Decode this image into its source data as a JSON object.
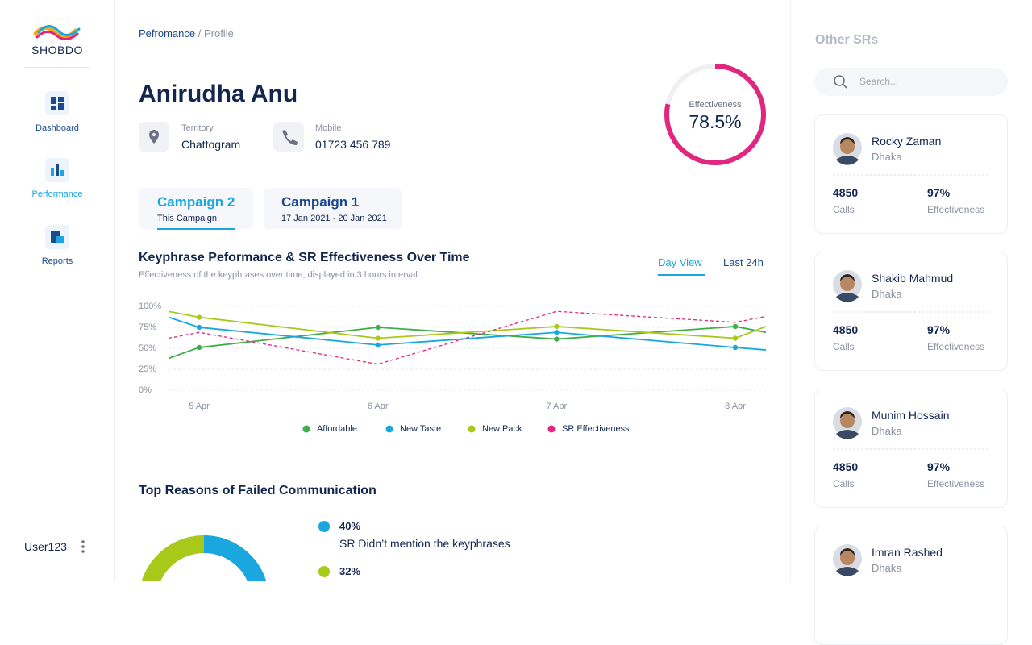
{
  "sidebar": {
    "brand": "SHOBDO",
    "nav": [
      {
        "label": "Dashboard"
      },
      {
        "label": "Performance",
        "active": true
      },
      {
        "label": "Reports"
      }
    ],
    "user": "User123"
  },
  "breadcrumb": {
    "parent": "Pefromance",
    "separator": "/",
    "current": "Profile"
  },
  "profile": {
    "name": "Anirudha Anu",
    "territory_label": "Territory",
    "territory": "Chattogram",
    "mobile_label": "Mobile",
    "mobile": "01723 456 789",
    "effectiveness_title": "Effectiveness",
    "effectiveness": {
      "value": 78.5,
      "label": "78.5%"
    }
  },
  "tabs": [
    {
      "title": "Campaign 2",
      "subtitle": "This Campaign",
      "active": true
    },
    {
      "title": "Campaign 1",
      "subtitle": "17 Jan 2021 - 20 Jan 2021"
    }
  ],
  "view_toggle": [
    {
      "label": "Day View",
      "active": true
    },
    {
      "label": "Last 24h"
    }
  ],
  "chart_data": {
    "type": "line",
    "title": "Keyphrase Peformance & SR Effectiveness Over Time",
    "subtitle": "Effectiveness of the keyphrases over time, displayed in 3 hours interval",
    "categories": [
      null,
      "5 Apr",
      "6 Apr",
      "7 Apr",
      "8 Apr",
      null
    ],
    "series": [
      {
        "name": "Affordable",
        "color": "#3fae49",
        "values": [
          38,
          51,
          75,
          61,
          76,
          69
        ]
      },
      {
        "name": "New Taste",
        "color": "#1aa7e0",
        "values": [
          87,
          75,
          54,
          69,
          51,
          48
        ]
      },
      {
        "name": "New Pack",
        "color": "#a8c81a",
        "values": [
          94,
          87,
          62,
          76,
          62,
          76
        ]
      },
      {
        "name": "SR Effectiveness",
        "color": "#e0267f",
        "style": "dashed",
        "values": [
          62,
          69,
          31,
          94,
          81,
          88
        ]
      }
    ],
    "ylim": [
      0,
      100
    ],
    "yticks": [
      {
        "value": 0,
        "label": "0%"
      },
      {
        "value": 25,
        "label": "25%"
      },
      {
        "value": 50,
        "label": "50%"
      },
      {
        "value": 75,
        "label": "75%"
      },
      {
        "value": 100,
        "label": "100%"
      }
    ],
    "grid": true
  },
  "failed_reasons": {
    "title": "Top Reasons of Failed Communication",
    "items": [
      {
        "value": 40,
        "label": "40%",
        "text": "SR Didn’t mention the keyphrases",
        "color": "#1aa7e0"
      },
      {
        "value": 32,
        "label": "32%",
        "color": "#a8c81a"
      }
    ]
  },
  "other_srs": {
    "title": "Other SRs",
    "search_placeholder": "Search...",
    "cards": [
      {
        "name": "Rocky Zaman",
        "city": "Dhaka",
        "calls": "4850",
        "calls_label": "Calls",
        "effectiveness": "97%",
        "effectiveness_label": "Effectiveness"
      },
      {
        "name": "Shakib Mahmud",
        "city": "Dhaka",
        "calls": "4850",
        "calls_label": "Calls",
        "effectiveness": "97%",
        "effectiveness_label": "Effectiveness"
      },
      {
        "name": "Munim Hossain",
        "city": "Dhaka",
        "calls": "4850",
        "calls_label": "Calls",
        "effectiveness": "97%",
        "effectiveness_label": "Effectiveness"
      },
      {
        "name": "Imran Rashed",
        "city": "Dhaka"
      }
    ]
  }
}
